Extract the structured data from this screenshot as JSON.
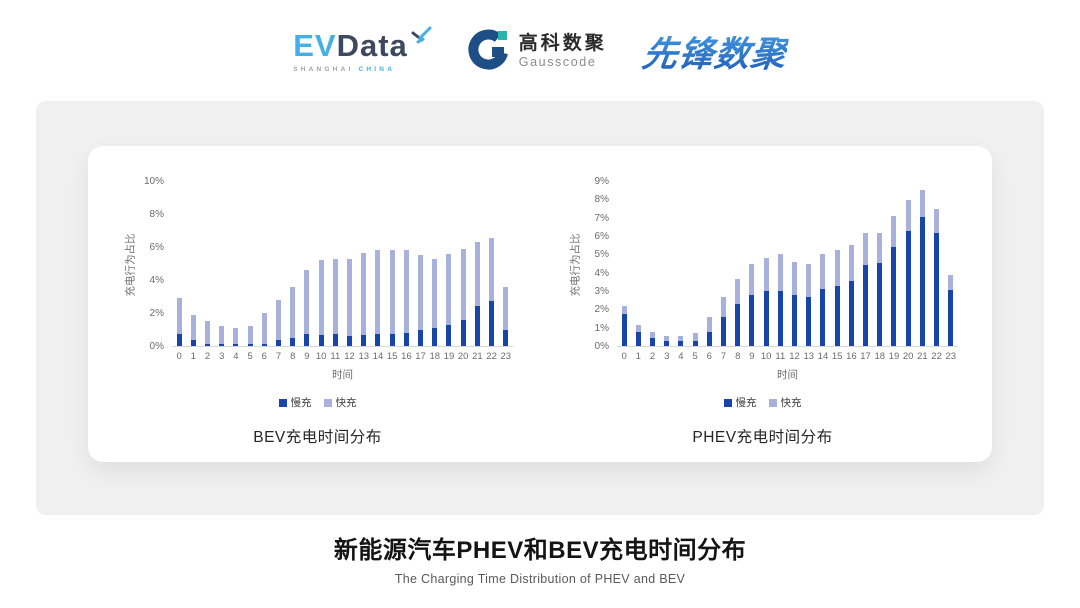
{
  "header": {
    "evdata": {
      "part1": "EV",
      "part2": "Data",
      "tagline_left": "SHANGHAI",
      "tagline_right": "CHINA"
    },
    "gausscode": {
      "name_cn": "高科数聚",
      "name_en": "Gausscode"
    },
    "pioneer": {
      "name": "先锋数聚"
    }
  },
  "chart_data": [
    {
      "type": "bar",
      "stacked": true,
      "title": "BEV充电时间分布",
      "xlabel": "时间",
      "ylabel": "充电行为占比",
      "categories": [
        0,
        1,
        2,
        3,
        4,
        5,
        6,
        7,
        8,
        9,
        10,
        11,
        12,
        13,
        14,
        15,
        16,
        17,
        18,
        19,
        20,
        21,
        22,
        23
      ],
      "series": [
        {
          "name": "慢充",
          "color": "#1745a8",
          "values": [
            0.7,
            0.35,
            0.15,
            0.1,
            0.1,
            0.1,
            0.15,
            0.35,
            0.5,
            0.7,
            0.65,
            0.7,
            0.6,
            0.65,
            0.7,
            0.7,
            0.8,
            1.0,
            1.1,
            1.3,
            1.6,
            2.4,
            2.75,
            0.95
          ]
        },
        {
          "name": "快充",
          "color": "#a8b0dc",
          "values": [
            2.2,
            1.55,
            1.35,
            1.1,
            1.0,
            1.1,
            1.85,
            2.45,
            3.05,
            3.9,
            4.55,
            4.55,
            4.65,
            5.0,
            5.1,
            5.1,
            5.05,
            4.5,
            4.2,
            4.3,
            4.3,
            3.9,
            3.8,
            2.6
          ]
        }
      ],
      "ylim": [
        0,
        10
      ],
      "ytick_step": 2,
      "ytick_suffix": "%",
      "grid": false,
      "legend_position": "bottom"
    },
    {
      "type": "bar",
      "stacked": true,
      "title": "PHEV充电时间分布",
      "xlabel": "时间",
      "ylabel": "充电行为占比",
      "categories": [
        0,
        1,
        2,
        3,
        4,
        5,
        6,
        7,
        8,
        9,
        10,
        11,
        12,
        13,
        14,
        15,
        16,
        17,
        18,
        19,
        20,
        21,
        22,
        23
      ],
      "series": [
        {
          "name": "慢充",
          "color": "#1745a8",
          "values": [
            1.75,
            0.75,
            0.45,
            0.25,
            0.25,
            0.3,
            0.75,
            1.6,
            2.3,
            2.8,
            3.0,
            3.0,
            2.8,
            2.65,
            3.1,
            3.25,
            3.55,
            4.4,
            4.55,
            5.4,
            6.25,
            7.05,
            6.15,
            3.05
          ]
        },
        {
          "name": "快充",
          "color": "#a8b0dc",
          "values": [
            0.45,
            0.4,
            0.3,
            0.3,
            0.3,
            0.4,
            0.85,
            1.1,
            1.35,
            1.7,
            1.8,
            2.0,
            1.8,
            1.85,
            1.9,
            2.0,
            1.95,
            1.75,
            1.6,
            1.7,
            1.7,
            1.45,
            1.3,
            0.8
          ]
        }
      ],
      "ylim": [
        0,
        9
      ],
      "ytick_step": 1,
      "ytick_suffix": "%",
      "grid": false,
      "legend_position": "bottom"
    }
  ],
  "footer": {
    "title": "新能源汽车PHEV和BEV充电时间分布",
    "subtitle": "The Charging Time Distribution of PHEV and BEV"
  },
  "colors": {
    "slow_charge": "#1745a8",
    "fast_charge": "#a8b0dc",
    "panel_bg": "#f0f0f0",
    "card_bg": "#ffffff",
    "axis_text": "#6b6b6b",
    "evdata_light_blue": "#45b0e6",
    "evdata_dark": "#3d4a5d",
    "gausscode_blue": "#1d4e86",
    "gausscode_teal": "#27b5ad",
    "pioneer_blue": "#2b79cf"
  }
}
